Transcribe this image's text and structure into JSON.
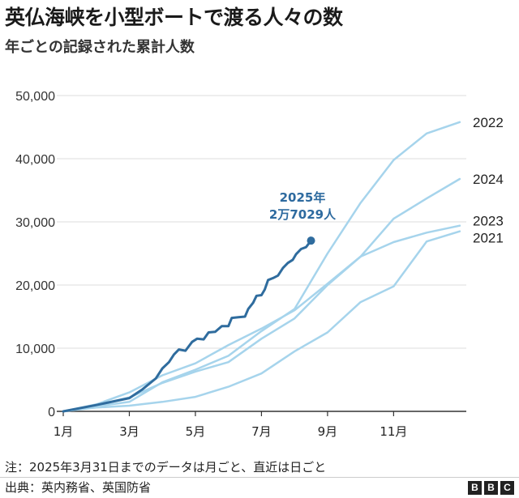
{
  "chart_data": {
    "type": "line",
    "title": "英仏海峡を小型ボートで渡る人々の数",
    "subtitle": "年ごとの記録された累計人数",
    "xlabel": "",
    "ylabel": "",
    "x_ticks": [
      {
        "month": 1,
        "label": "1月"
      },
      {
        "month": 3,
        "label": "3月"
      },
      {
        "month": 5,
        "label": "5月"
      },
      {
        "month": 7,
        "label": "7月"
      },
      {
        "month": 9,
        "label": "9月"
      },
      {
        "month": 11,
        "label": "11月"
      }
    ],
    "y_ticks": [
      {
        "value": 0,
        "label": "0"
      },
      {
        "value": 10000,
        "label": "10,000"
      },
      {
        "value": 20000,
        "label": "20,000"
      },
      {
        "value": 30000,
        "label": "30,000"
      },
      {
        "value": 40000,
        "label": "40,000"
      },
      {
        "value": 50000,
        "label": "50,000"
      }
    ],
    "xlim": [
      1,
      13.2
    ],
    "ylim": [
      0,
      50000
    ],
    "grid": "horizontal",
    "series": [
      {
        "name": "2021",
        "color": "#a6d4ec",
        "points": [
          [
            1,
            0
          ],
          [
            2,
            600
          ],
          [
            3,
            900
          ],
          [
            4,
            1500
          ],
          [
            5,
            2300
          ],
          [
            6,
            3900
          ],
          [
            7,
            6000
          ],
          [
            8,
            9500
          ],
          [
            9,
            12500
          ],
          [
            10,
            17300
          ],
          [
            11,
            19800
          ],
          [
            12,
            26900
          ],
          [
            13,
            28500
          ]
        ]
      },
      {
        "name": "2022",
        "color": "#a6d4ec",
        "points": [
          [
            1,
            0
          ],
          [
            2,
            800
          ],
          [
            3,
            1500
          ],
          [
            4,
            4600
          ],
          [
            5,
            6600
          ],
          [
            6,
            8800
          ],
          [
            7,
            12700
          ],
          [
            8,
            16200
          ],
          [
            9,
            25000
          ],
          [
            10,
            33000
          ],
          [
            11,
            39800
          ],
          [
            12,
            44000
          ],
          [
            13,
            45800
          ]
        ]
      },
      {
        "name": "2023",
        "color": "#a6d4ec",
        "points": [
          [
            1,
            0
          ],
          [
            2,
            1100
          ],
          [
            3,
            3000
          ],
          [
            4,
            5700
          ],
          [
            5,
            7600
          ],
          [
            6,
            10500
          ],
          [
            7,
            13100
          ],
          [
            8,
            16000
          ],
          [
            9,
            20200
          ],
          [
            10,
            24500
          ],
          [
            11,
            26800
          ],
          [
            12,
            28300
          ],
          [
            13,
            29400
          ]
        ]
      },
      {
        "name": "2024",
        "color": "#a6d4ec",
        "points": [
          [
            1,
            0
          ],
          [
            2,
            1000
          ],
          [
            3,
            2200
          ],
          [
            4,
            4500
          ],
          [
            5,
            6300
          ],
          [
            6,
            7800
          ],
          [
            7,
            11500
          ],
          [
            8,
            14700
          ],
          [
            9,
            20000
          ],
          [
            10,
            24500
          ],
          [
            11,
            30500
          ],
          [
            12,
            33700
          ],
          [
            13,
            36800
          ]
        ]
      },
      {
        "name": "2025",
        "color": "#2f6c9e",
        "points": [
          [
            1,
            0
          ],
          [
            2,
            1000
          ],
          [
            3,
            2100
          ],
          [
            3.4,
            3500
          ],
          [
            3.8,
            5200
          ],
          [
            4.0,
            6800
          ],
          [
            4.2,
            7800
          ],
          [
            4.35,
            9000
          ],
          [
            4.5,
            9800
          ],
          [
            4.7,
            9600
          ],
          [
            4.9,
            11000
          ],
          [
            5.05,
            11500
          ],
          [
            5.25,
            11400
          ],
          [
            5.4,
            12500
          ],
          [
            5.6,
            12600
          ],
          [
            5.8,
            13500
          ],
          [
            6.0,
            13500
          ],
          [
            6.1,
            14800
          ],
          [
            6.3,
            14900
          ],
          [
            6.5,
            15000
          ],
          [
            6.6,
            16200
          ],
          [
            6.75,
            17200
          ],
          [
            6.85,
            18300
          ],
          [
            7.0,
            18400
          ],
          [
            7.1,
            19300
          ],
          [
            7.2,
            20800
          ],
          [
            7.35,
            21100
          ],
          [
            7.5,
            21500
          ],
          [
            7.65,
            22700
          ],
          [
            7.8,
            23500
          ],
          [
            7.95,
            24000
          ],
          [
            8.05,
            24900
          ],
          [
            8.2,
            25700
          ],
          [
            8.35,
            26000
          ],
          [
            8.5,
            27029
          ]
        ]
      }
    ],
    "annotation": {
      "series": "2025",
      "line1": "2025年",
      "line2": "2万7029人"
    },
    "note": "注：2025年3月31日までのデータは月ごと、直近は日ごと",
    "source": "出典：英内務省、英国防省",
    "logo": [
      "B",
      "B",
      "C"
    ]
  }
}
